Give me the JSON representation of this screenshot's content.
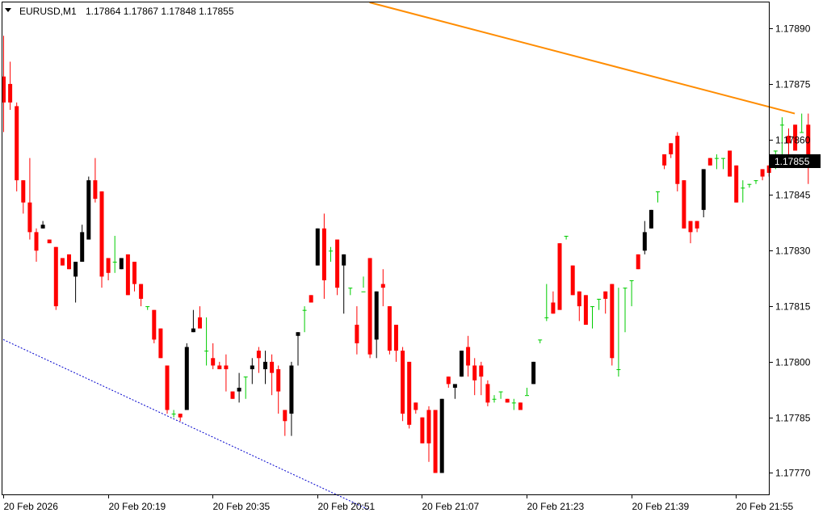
{
  "header": {
    "symbol_timeframe": "EURUSD,M1",
    "ohlc": "1.17864 1.17867 1.17848 1.17855"
  },
  "colors": {
    "background": "#ffffff",
    "axis": "#000000",
    "bull_candle": "#000000",
    "bear_candle": "#ff0000",
    "doji_candle": "#00cc00",
    "resistance_line": "#ff8c00",
    "support_line": "#0000cd",
    "price_tag_bg": "#000000",
    "price_tag_text": "#ffffff"
  },
  "chart_data": {
    "type": "candlestick",
    "ylim": [
      1.17764,
      1.17897
    ],
    "y_ticks": [
      "1.17890",
      "1.17875",
      "1.17860",
      "1.17845",
      "1.17830",
      "1.17815",
      "1.17800",
      "1.17785",
      "1.17770"
    ],
    "x_tick_labels": [
      "20 Feb 2026",
      "20 Feb 20:19",
      "20 Feb 20:35",
      "20 Feb 20:51",
      "20 Feb 21:07",
      "20 Feb 21:23",
      "20 Feb 21:39",
      "20 Feb 21:55"
    ],
    "current_price": "1.17855",
    "candles": [
      [
        1.17877,
        1.17888,
        1.17862,
        1.1787
      ],
      [
        1.17875,
        1.17881,
        1.17868,
        1.1787
      ],
      [
        1.17869,
        1.1787,
        1.17846,
        1.17849
      ],
      [
        1.17849,
        1.17849,
        1.1784,
        1.17843
      ],
      [
        1.17843,
        1.17855,
        1.17833,
        1.17835
      ],
      [
        1.17835,
        1.17836,
        1.17827,
        1.1783
      ],
      [
        1.17836,
        1.17838,
        1.17836,
        1.17837
      ],
      [
        1.17833,
        1.17833,
        1.17832,
        1.17832
      ],
      [
        1.17831,
        1.17831,
        1.17814,
        1.17815
      ],
      [
        1.17828,
        1.17828,
        1.17826,
        1.17826
      ],
      [
        1.17829,
        1.17829,
        1.17825,
        1.17825
      ],
      [
        1.17823,
        1.17827,
        1.17816,
        1.17827
      ],
      [
        1.17827,
        1.17837,
        1.17827,
        1.17835
      ],
      [
        1.17833,
        1.1785,
        1.17833,
        1.17849
      ],
      [
        1.17849,
        1.17855,
        1.17843,
        1.17844
      ],
      [
        1.17846,
        1.17846,
        1.1782,
        1.17823
      ],
      [
        1.17828,
        1.17828,
        1.17822,
        1.17824
      ],
      [
        1.17827,
        1.17834,
        1.17824,
        1.17827
      ],
      [
        1.17825,
        1.17828,
        1.17825,
        1.17828
      ],
      [
        1.17829,
        1.17829,
        1.17818,
        1.17818
      ],
      [
        1.17827,
        1.17827,
        1.17819,
        1.17821
      ],
      [
        1.17821,
        1.17821,
        1.17815,
        1.17817
      ],
      [
        1.17815,
        1.17815,
        1.17814,
        1.17815
      ],
      [
        1.17814,
        1.17814,
        1.17805,
        1.17806
      ],
      [
        1.17809,
        1.17809,
        1.17801,
        1.17801
      ],
      [
        1.17799,
        1.17799,
        1.17786,
        1.17787
      ],
      [
        1.17786,
        1.17787,
        1.17785,
        1.17786
      ],
      [
        1.17786,
        1.17786,
        1.17784,
        1.17785
      ],
      [
        1.17787,
        1.17805,
        1.17787,
        1.17804
      ],
      [
        1.17808,
        1.17814,
        1.17808,
        1.17809
      ],
      [
        1.17812,
        1.17815,
        1.1781,
        1.17809
      ],
      [
        1.17803,
        1.17812,
        1.17799,
        1.17803
      ],
      [
        1.17801,
        1.17805,
        1.17798,
        1.17799
      ],
      [
        1.17799,
        1.178,
        1.17798,
        1.17798
      ],
      [
        1.17799,
        1.17802,
        1.17792,
        1.17798
      ],
      [
        1.17792,
        1.17792,
        1.1779,
        1.1779
      ],
      [
        1.17792,
        1.17797,
        1.17789,
        1.17793
      ],
      [
        1.17796,
        1.17796,
        1.1779,
        1.17796
      ],
      [
        1.17798,
        1.17801,
        1.17794,
        1.17799
      ],
      [
        1.17803,
        1.17804,
        1.17797,
        1.17801
      ],
      [
        1.17798,
        1.17803,
        1.17794,
        1.178
      ],
      [
        1.178,
        1.17802,
        1.17791,
        1.17797
      ],
      [
        1.17798,
        1.17799,
        1.17786,
        1.17792
      ],
      [
        1.17787,
        1.17787,
        1.1778,
        1.17784
      ],
      [
        1.17786,
        1.178,
        1.1778,
        1.17799
      ],
      [
        1.17807,
        1.17808,
        1.17799,
        1.17808
      ],
      [
        1.17814,
        1.17815,
        1.17808,
        1.17814
      ],
      [
        1.17818,
        1.17818,
        1.17816,
        1.17816
      ],
      [
        1.17826,
        1.17836,
        1.17826,
        1.17836
      ],
      [
        1.17836,
        1.1784,
        1.17817,
        1.17822
      ],
      [
        1.1783,
        1.17831,
        1.17827,
        1.1783
      ],
      [
        1.17833,
        1.17833,
        1.17818,
        1.1782
      ],
      [
        1.17826,
        1.17829,
        1.17813,
        1.17829
      ],
      [
        1.1782,
        1.1782,
        1.17818,
        1.1782
      ],
      [
        1.1781,
        1.17815,
        1.17802,
        1.17805
      ],
      [
        1.17819,
        1.17823,
        1.1782,
        1.17819
      ],
      [
        1.17828,
        1.17828,
        1.17801,
        1.17802
      ],
      [
        1.17806,
        1.17819,
        1.17801,
        1.17819
      ],
      [
        1.17821,
        1.17825,
        1.17815,
        1.1782
      ],
      [
        1.17815,
        1.17815,
        1.17802,
        1.17803
      ],
      [
        1.1781,
        1.1781,
        1.178,
        1.17803
      ],
      [
        1.17803,
        1.17804,
        1.17784,
        1.17786
      ],
      [
        1.178,
        1.178,
        1.17782,
        1.17783
      ],
      [
        1.17789,
        1.17789,
        1.17786,
        1.17787
      ],
      [
        1.17785,
        1.17785,
        1.17778,
        1.17778
      ],
      [
        1.17787,
        1.17788,
        1.17773,
        1.17778
      ],
      [
        1.17787,
        1.17787,
        1.1777,
        1.1777
      ],
      [
        1.1777,
        1.1779,
        1.1777,
        1.1779
      ],
      [
        1.17796,
        1.17796,
        1.17793,
        1.17794
      ],
      [
        1.17793,
        1.17793,
        1.1779,
        1.17794
      ],
      [
        1.17796,
        1.17803,
        1.17796,
        1.17803
      ],
      [
        1.17804,
        1.17807,
        1.17796,
        1.17799
      ],
      [
        1.17799,
        1.17801,
        1.17791,
        1.17795
      ],
      [
        1.17799,
        1.178,
        1.17791,
        1.17796
      ],
      [
        1.17794,
        1.17795,
        1.17788,
        1.17789
      ],
      [
        1.1779,
        1.17791,
        1.17789,
        1.1779
      ],
      [
        1.17792,
        1.17792,
        1.1779,
        1.17792
      ],
      [
        1.1779,
        1.1779,
        1.17789,
        1.17789
      ],
      [
        1.17789,
        1.1779,
        1.17787,
        1.17789
      ],
      [
        1.17789,
        1.17789,
        1.17787,
        1.17787
      ],
      [
        1.17791,
        1.17793,
        1.17791,
        1.17791
      ],
      [
        1.17794,
        1.178,
        1.17794,
        1.178
      ],
      [
        1.17806,
        1.17806,
        1.17805,
        1.17806
      ],
      [
        1.17812,
        1.17821,
        1.17811,
        1.17812
      ],
      [
        1.17816,
        1.17819,
        1.17813,
        1.17813
      ],
      [
        1.17832,
        1.17832,
        1.17815,
        1.17814
      ],
      [
        1.17834,
        1.17834,
        1.17833,
        1.17834
      ],
      [
        1.17826,
        1.17826,
        1.17818,
        1.17818
      ],
      [
        1.17819,
        1.17819,
        1.17811,
        1.17815
      ],
      [
        1.17818,
        1.17818,
        1.1781,
        1.1781
      ],
      [
        1.17815,
        1.17815,
        1.17809,
        1.17815
      ],
      [
        1.17817,
        1.17817,
        1.17814,
        1.17817
      ],
      [
        1.17819,
        1.17819,
        1.17813,
        1.17817
      ],
      [
        1.17821,
        1.17821,
        1.17799,
        1.17801
      ],
      [
        1.17798,
        1.1782,
        1.17796,
        1.17798
      ],
      [
        1.1782,
        1.1782,
        1.17808,
        1.1782
      ],
      [
        1.17822,
        1.17822,
        1.17815,
        1.17822
      ],
      [
        1.17829,
        1.17829,
        1.17825,
        1.17825
      ],
      [
        1.1783,
        1.17838,
        1.17829,
        1.17835
      ],
      [
        1.17836,
        1.17841,
        1.17836,
        1.17841
      ],
      [
        1.17846,
        1.17846,
        1.17843,
        1.17846
      ],
      [
        1.17856,
        1.17856,
        1.17852,
        1.17853
      ],
      [
        1.17859,
        1.17859,
        1.17855,
        1.17856
      ],
      [
        1.17861,
        1.17862,
        1.17846,
        1.17848
      ],
      [
        1.17849,
        1.17849,
        1.17836,
        1.17836
      ],
      [
        1.17838,
        1.17838,
        1.17832,
        1.17835
      ],
      [
        1.17838,
        1.17838,
        1.17835,
        1.17836
      ],
      [
        1.17841,
        1.17852,
        1.17839,
        1.17852
      ],
      [
        1.17855,
        1.17855,
        1.17853,
        1.17853
      ],
      [
        1.17855,
        1.17856,
        1.17852,
        1.17855
      ],
      [
        1.17855,
        1.17855,
        1.17852,
        1.17855
      ],
      [
        1.17857,
        1.17857,
        1.1785,
        1.1785
      ],
      [
        1.17853,
        1.17853,
        1.17843,
        1.17843
      ],
      [
        1.17847,
        1.17849,
        1.17843,
        1.17847
      ],
      [
        1.17848,
        1.17848,
        1.17847,
        1.17848
      ],
      [
        1.17849,
        1.17849,
        1.17848,
        1.17849
      ],
      [
        1.17852,
        1.17852,
        1.17849,
        1.1785
      ],
      [
        1.17853,
        1.17853,
        1.1785,
        1.17851
      ],
      [
        1.17857,
        1.17857,
        1.17852,
        1.17857
      ],
      [
        1.17864,
        1.17866,
        1.17856,
        1.17864
      ],
      [
        1.17861,
        1.17863,
        1.17853,
        1.17859
      ],
      [
        1.17864,
        1.17864,
        1.17857,
        1.17857
      ],
      [
        1.17862,
        1.17867,
        1.17862,
        1.17862
      ],
      [
        1.17864,
        1.17867,
        1.17848,
        1.17855
      ]
    ],
    "trendlines": [
      {
        "style": "solid",
        "points": [
          [
            56,
            1.17897
          ],
          [
            121,
            1.17867
          ]
        ]
      },
      {
        "style": "dotted",
        "points": [
          [
            0,
            1.17806
          ],
          [
            56,
            1.1776
          ]
        ]
      }
    ]
  }
}
